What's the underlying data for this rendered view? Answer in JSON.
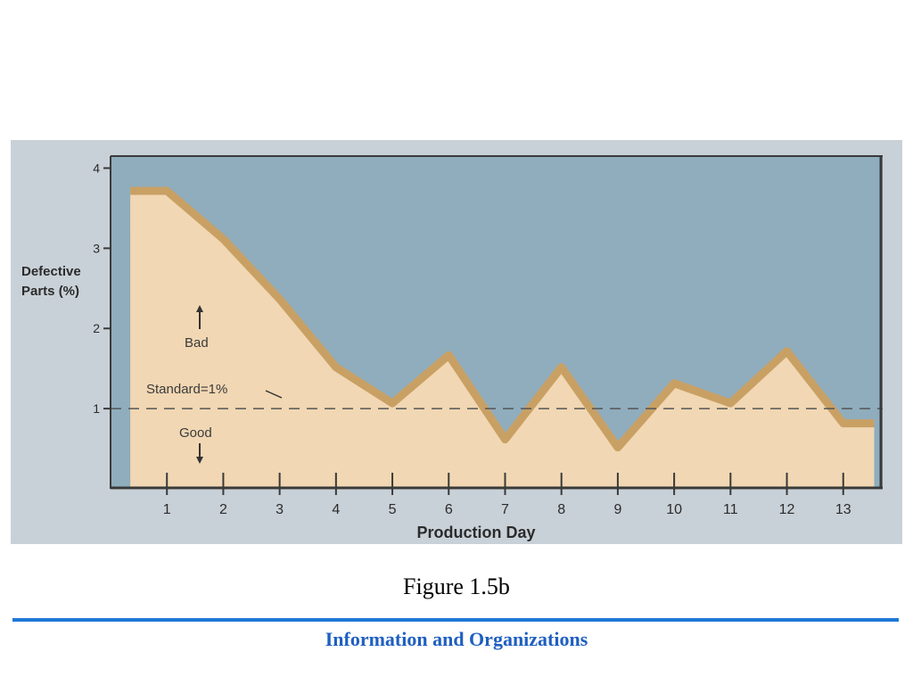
{
  "chart_data": {
    "type": "area",
    "xlabel": "Production Day",
    "ylabel_lines": [
      "Defective",
      "Parts (%)"
    ],
    "categories": [
      "1",
      "2",
      "3",
      "4",
      "5",
      "6",
      "7",
      "8",
      "9",
      "10",
      "11",
      "12",
      "13"
    ],
    "x": [
      0.35,
      1,
      2,
      3,
      4,
      5,
      6,
      7,
      8,
      9,
      10,
      11,
      12,
      13,
      13.55
    ],
    "y": [
      3.75,
      3.75,
      3.15,
      2.4,
      1.55,
      1.1,
      1.7,
      0.65,
      1.55,
      0.55,
      1.35,
      1.1,
      1.75,
      0.85,
      0.85
    ],
    "yticks": [
      "1",
      "2",
      "3",
      "4"
    ],
    "ylim": [
      0,
      4.15
    ],
    "xlim": [
      0,
      13.7
    ],
    "standard": {
      "value": 1,
      "label": "Standard=1%"
    },
    "annotations": {
      "bad": "Bad",
      "good": "Good"
    },
    "grid": false,
    "colors": {
      "plot_background": "#8fadbd",
      "area_fill": "#f1d7b3",
      "area_edge": "#c9a064",
      "panel": "#c9d1d8"
    }
  },
  "caption": "Figure 1.5b",
  "footer": {
    "title": "Information and Organizations",
    "rule_color": "#1f78d6"
  }
}
